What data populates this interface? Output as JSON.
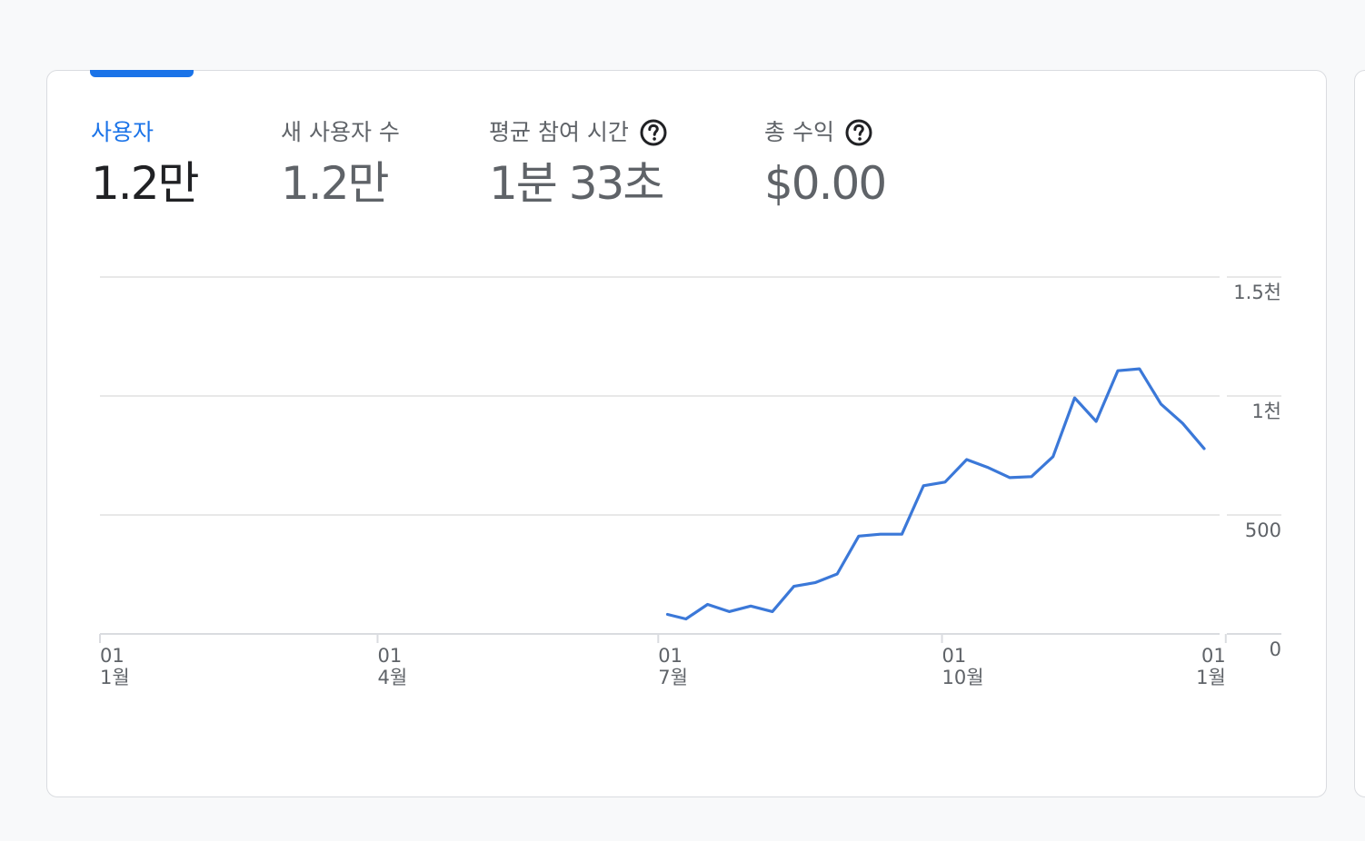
{
  "metrics": [
    {
      "label": "사용자",
      "value": "1.2만",
      "help": false,
      "active": true
    },
    {
      "label": "새 사용자 수",
      "value": "1.2만",
      "help": false,
      "active": false
    },
    {
      "label": "평균 참여 시간",
      "value": "1분 33초",
      "help": true,
      "active": false
    },
    {
      "label": "총 수익",
      "value": "$0.00",
      "help": true,
      "active": false
    }
  ],
  "colors": {
    "accent": "#1a73e8",
    "line": "#3b78d8",
    "grid": "#e0e0e0",
    "text_secondary": "#5f6368",
    "text_primary": "#202124"
  },
  "chart_data": {
    "type": "line",
    "ylim": [
      0,
      1500
    ],
    "y_ticks": [
      {
        "value": 1500,
        "label": "1.5천"
      },
      {
        "value": 1000,
        "label": "1천"
      },
      {
        "value": 500,
        "label": "500"
      },
      {
        "value": 0,
        "label": "0"
      }
    ],
    "x_ticks": [
      {
        "day": 0,
        "line1": "01",
        "line2": "1월"
      },
      {
        "day": 90,
        "line1": "01",
        "line2": "4월"
      },
      {
        "day": 181,
        "line1": "01",
        "line2": "7월"
      },
      {
        "day": 273,
        "line1": "01",
        "line2": "10월"
      },
      {
        "day": 365,
        "line1": "01",
        "line2": "1월"
      }
    ],
    "grid": true,
    "series": [
      {
        "points": [
          {
            "x": 184,
            "y": 82
          },
          {
            "x": 190,
            "y": 63
          },
          {
            "x": 197,
            "y": 124
          },
          {
            "x": 204,
            "y": 94
          },
          {
            "x": 211,
            "y": 117
          },
          {
            "x": 218,
            "y": 94
          },
          {
            "x": 225,
            "y": 200
          },
          {
            "x": 232,
            "y": 216
          },
          {
            "x": 239,
            "y": 252
          },
          {
            "x": 246,
            "y": 411
          },
          {
            "x": 253,
            "y": 419
          },
          {
            "x": 260,
            "y": 419
          },
          {
            "x": 267,
            "y": 623
          },
          {
            "x": 274,
            "y": 638
          },
          {
            "x": 281,
            "y": 733
          },
          {
            "x": 288,
            "y": 699
          },
          {
            "x": 295,
            "y": 657
          },
          {
            "x": 302,
            "y": 661
          },
          {
            "x": 309,
            "y": 745
          },
          {
            "x": 316,
            "y": 992
          },
          {
            "x": 323,
            "y": 893
          },
          {
            "x": 330,
            "y": 1106
          },
          {
            "x": 337,
            "y": 1114
          },
          {
            "x": 344,
            "y": 966
          },
          {
            "x": 351,
            "y": 885
          },
          {
            "x": 358,
            "y": 779
          }
        ]
      }
    ]
  }
}
